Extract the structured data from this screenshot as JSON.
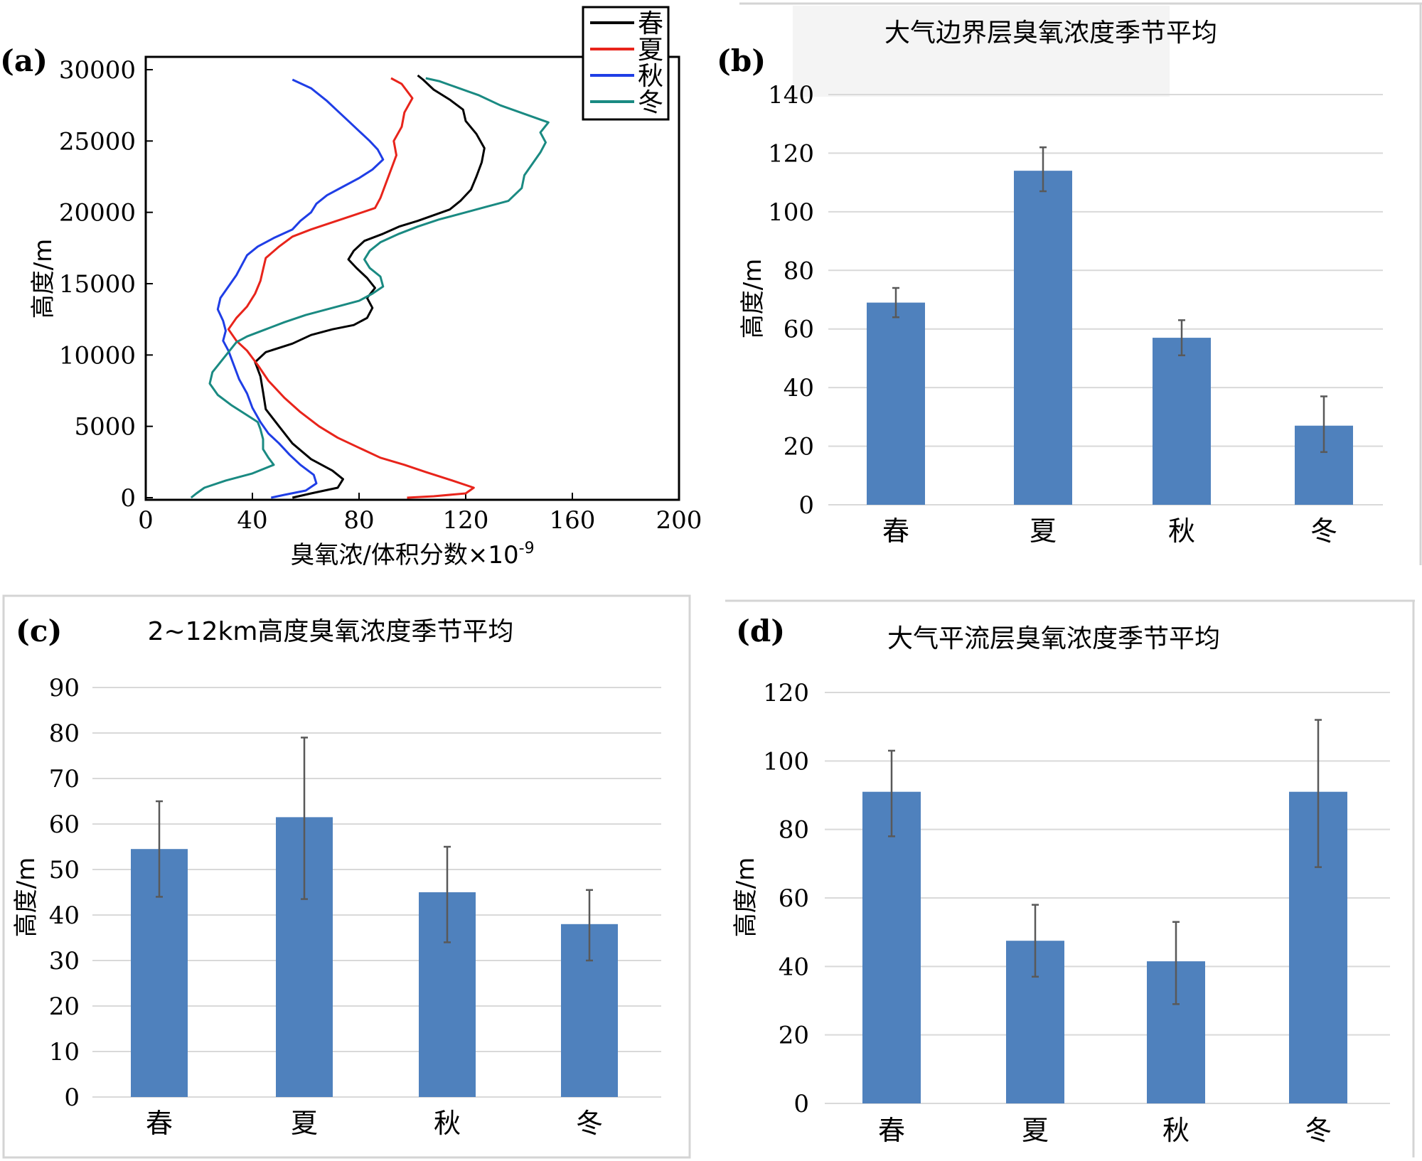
{
  "panel_a": {
    "label": "(a)",
    "xlabel": "臭氧浓/体积分数×10",
    "xlabel_sup": "-9",
    "xticks": [
      "0",
      "40",
      "80",
      "120",
      "160",
      "200"
    ],
    "yticks": [
      "0",
      "5000",
      "10000",
      "15000",
      "20000",
      "25000",
      "30000"
    ],
    "ylabel": "高度/m"
  },
  "chart_data": [
    {
      "id": "a",
      "type": "line",
      "title": "",
      "xlabel": "臭氧浓/体积分数×10^-9",
      "ylabel": "高度/m",
      "xlim": [
        0,
        200
      ],
      "ylim": [
        0,
        30000
      ],
      "legend_position": "top-right",
      "series": [
        {
          "name": "春",
          "color": "#000000",
          "points": [
            [
              55,
              0
            ],
            [
              62,
              300
            ],
            [
              72,
              700
            ],
            [
              74,
              1300
            ],
            [
              70,
              1900
            ],
            [
              62,
              2700
            ],
            [
              55,
              3800
            ],
            [
              50,
              5000
            ],
            [
              45,
              6200
            ],
            [
              44,
              7400
            ],
            [
              43,
              8500
            ],
            [
              41,
              9500
            ],
            [
              45,
              10200
            ],
            [
              55,
              10800
            ],
            [
              62,
              11400
            ],
            [
              70,
              11800
            ],
            [
              78,
              12100
            ],
            [
              83,
              12600
            ],
            [
              85,
              13300
            ],
            [
              83,
              14000
            ],
            [
              86,
              14700
            ],
            [
              83,
              15400
            ],
            [
              79,
              16100
            ],
            [
              76,
              16700
            ],
            [
              78,
              17300
            ],
            [
              82,
              18000
            ],
            [
              89,
              18500
            ],
            [
              95,
              19000
            ],
            [
              102,
              19400
            ],
            [
              108,
              19800
            ],
            [
              114,
              20200
            ],
            [
              118,
              20800
            ],
            [
              122,
              21600
            ],
            [
              124,
              22500
            ],
            [
              126,
              23500
            ],
            [
              127,
              24500
            ],
            [
              124,
              25500
            ],
            [
              120,
              26400
            ],
            [
              119,
              27200
            ],
            [
              114,
              27900
            ],
            [
              108,
              28600
            ],
            [
              104,
              29300
            ],
            [
              102,
              29600
            ]
          ]
        },
        {
          "name": "夏",
          "color": "#e8241b",
          "points": [
            [
              98,
              0
            ],
            [
              108,
              100
            ],
            [
              120,
              300
            ],
            [
              123,
              700
            ],
            [
              115,
              1200
            ],
            [
              105,
              1800
            ],
            [
              97,
              2300
            ],
            [
              88,
              2800
            ],
            [
              80,
              3500
            ],
            [
              72,
              4200
            ],
            [
              65,
              5000
            ],
            [
              58,
              6000
            ],
            [
              52,
              7000
            ],
            [
              46,
              8200
            ],
            [
              42,
              9300
            ],
            [
              38,
              10300
            ],
            [
              34,
              11000
            ],
            [
              31,
              11800
            ],
            [
              34,
              12600
            ],
            [
              38,
              13400
            ],
            [
              41,
              14300
            ],
            [
              43,
              15200
            ],
            [
              44,
              16000
            ],
            [
              45,
              16800
            ],
            [
              50,
              17600
            ],
            [
              55,
              18300
            ],
            [
              62,
              18800
            ],
            [
              70,
              19300
            ],
            [
              78,
              19800
            ],
            [
              86,
              20300
            ],
            [
              88,
              21000
            ],
            [
              90,
              22000
            ],
            [
              92,
              23000
            ],
            [
              94,
              24000
            ],
            [
              93,
              25000
            ],
            [
              96,
              26000
            ],
            [
              97,
              27000
            ],
            [
              100,
              28000
            ],
            [
              96,
              29000
            ],
            [
              92,
              29400
            ]
          ]
        },
        {
          "name": "秋",
          "color": "#1f3ee6",
          "points": [
            [
              47,
              0
            ],
            [
              52,
              200
            ],
            [
              60,
              500
            ],
            [
              64,
              1000
            ],
            [
              63,
              1600
            ],
            [
              58,
              2300
            ],
            [
              54,
              3000
            ],
            [
              50,
              3800
            ],
            [
              46,
              4500
            ],
            [
              43,
              5300
            ],
            [
              40,
              6300
            ],
            [
              38,
              7300
            ],
            [
              35,
              8300
            ],
            [
              33,
              9300
            ],
            [
              31,
              10300
            ],
            [
              29,
              11000
            ],
            [
              30,
              11700
            ],
            [
              29,
              12400
            ],
            [
              27,
              13200
            ],
            [
              28,
              14000
            ],
            [
              31,
              14800
            ],
            [
              34,
              15600
            ],
            [
              36,
              16300
            ],
            [
              38,
              17000
            ],
            [
              42,
              17600
            ],
            [
              48,
              18200
            ],
            [
              55,
              18800
            ],
            [
              58,
              19400
            ],
            [
              62,
              20000
            ],
            [
              64,
              20600
            ],
            [
              68,
              21200
            ],
            [
              74,
              21800
            ],
            [
              80,
              22400
            ],
            [
              85,
              23000
            ],
            [
              89,
              23700
            ],
            [
              87,
              24400
            ],
            [
              84,
              25000
            ],
            [
              80,
              25700
            ],
            [
              76,
              26400
            ],
            [
              72,
              27100
            ],
            [
              68,
              27800
            ],
            [
              62,
              28700
            ],
            [
              55,
              29300
            ]
          ]
        },
        {
          "name": "冬",
          "color": "#1a8a82",
          "points": [
            [
              17,
              0
            ],
            [
              19,
              300
            ],
            [
              22,
              700
            ],
            [
              30,
              1200
            ],
            [
              40,
              1700
            ],
            [
              48,
              2300
            ],
            [
              46,
              2800
            ],
            [
              44,
              3400
            ],
            [
              44,
              4100
            ],
            [
              43,
              4800
            ],
            [
              42,
              5300
            ],
            [
              37,
              5900
            ],
            [
              32,
              6500
            ],
            [
              27,
              7200
            ],
            [
              24,
              8000
            ],
            [
              25,
              8800
            ],
            [
              28,
              9500
            ],
            [
              31,
              10200
            ],
            [
              34,
              10900
            ],
            [
              38,
              11300
            ],
            [
              45,
              11800
            ],
            [
              52,
              12300
            ],
            [
              60,
              12800
            ],
            [
              70,
              13300
            ],
            [
              80,
              13800
            ],
            [
              85,
              14300
            ],
            [
              89,
              14800
            ],
            [
              88,
              15500
            ],
            [
              84,
              16100
            ],
            [
              82,
              16700
            ],
            [
              84,
              17300
            ],
            [
              88,
              17900
            ],
            [
              95,
              18500
            ],
            [
              102,
              19000
            ],
            [
              110,
              19500
            ],
            [
              120,
              20000
            ],
            [
              128,
              20400
            ],
            [
              136,
              20800
            ],
            [
              141,
              21700
            ],
            [
              142,
              22600
            ],
            [
              145,
              23400
            ],
            [
              148,
              24200
            ],
            [
              150,
              24900
            ],
            [
              148,
              25600
            ],
            [
              151,
              26300
            ],
            [
              142,
              26900
            ],
            [
              133,
              27500
            ],
            [
              125,
              28200
            ],
            [
              116,
              28800
            ],
            [
              110,
              29200
            ],
            [
              105,
              29400
            ]
          ]
        }
      ]
    },
    {
      "id": "b",
      "type": "bar",
      "title": "大气边界层臭氧浓度季节平均",
      "ylabel": "高度/m",
      "categories": [
        "春",
        "夏",
        "秋",
        "冬"
      ],
      "values": [
        69,
        114,
        57,
        27
      ],
      "errors": [
        [
          64,
          74
        ],
        [
          107,
          122
        ],
        [
          51,
          63
        ],
        [
          18,
          37
        ]
      ],
      "ylim": [
        0,
        140
      ],
      "yticks": [
        "0",
        "20",
        "40",
        "60",
        "80",
        "100",
        "120",
        "140"
      ],
      "color": "#4f81bd"
    },
    {
      "id": "c",
      "type": "bar",
      "title": "2~12km高度臭氧浓度季节平均",
      "ylabel": "高度/m",
      "categories": [
        "春",
        "夏",
        "秋",
        "冬"
      ],
      "values": [
        54.5,
        61.5,
        45,
        38
      ],
      "errors": [
        [
          44,
          65
        ],
        [
          43.5,
          79
        ],
        [
          34,
          55
        ],
        [
          30,
          45.5
        ]
      ],
      "ylim": [
        0,
        90
      ],
      "yticks": [
        "0",
        "10",
        "20",
        "30",
        "40",
        "50",
        "60",
        "70",
        "80",
        "90"
      ],
      "color": "#4f81bd"
    },
    {
      "id": "d",
      "type": "bar",
      "title": "大气平流层臭氧浓度季节平均",
      "ylabel": "高度/m",
      "categories": [
        "春",
        "夏",
        "秋",
        "冬"
      ],
      "values": [
        91,
        47.5,
        41.5,
        91
      ],
      "errors": [
        [
          78,
          103
        ],
        [
          37,
          58
        ],
        [
          29,
          53
        ],
        [
          69,
          112
        ]
      ],
      "ylim": [
        0,
        120
      ],
      "yticks": [
        "0",
        "20",
        "40",
        "60",
        "80",
        "100",
        "120"
      ],
      "color": "#4f81bd"
    }
  ],
  "panel_labels": {
    "b": "(b)",
    "c": "(c)",
    "d": "(d)"
  },
  "colors": {
    "bar": "#4f81bd",
    "grid": "#d9d9d9",
    "error": "#595959"
  }
}
